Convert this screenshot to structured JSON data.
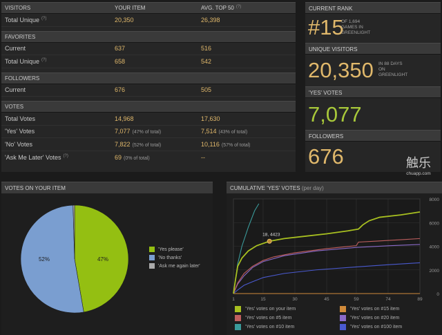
{
  "stats": {
    "visitors": {
      "header": [
        "VISITORS",
        "YOUR ITEM",
        "AVG. TOP 50"
      ],
      "header_sup": "(?)",
      "rows": [
        {
          "label": "Total Unique",
          "sup": "(?)",
          "yours": "20,350",
          "avg": "26,398"
        }
      ]
    },
    "favorites": {
      "header": "FAVORITES",
      "rows": [
        {
          "label": "Current",
          "yours": "637",
          "avg": "516"
        },
        {
          "label": "Total Unique",
          "sup": "(?)",
          "yours": "658",
          "avg": "542"
        }
      ]
    },
    "followers": {
      "header": "FOLLOWERS",
      "rows": [
        {
          "label": "Current",
          "yours": "676",
          "avg": "505"
        }
      ]
    },
    "votes": {
      "header": "VOTES",
      "rows": [
        {
          "label": "Total Votes",
          "yours": "14,968",
          "avg": "17,630"
        },
        {
          "label": "'Yes' Votes",
          "yours": "7,077",
          "yours_pct": "(47% of total)",
          "avg": "7,514",
          "avg_pct": "(43% of total)"
        },
        {
          "label": "'No' Votes",
          "yours": "7,822",
          "yours_pct": "(52% of total)",
          "avg": "10,116",
          "avg_pct": "(57% of total)"
        },
        {
          "label": "'Ask Me Later' Votes",
          "sup": "(?)",
          "yours": "69",
          "yours_pct": "(0% of total)",
          "avg": "--"
        }
      ]
    }
  },
  "rank": {
    "rank_header": "CURRENT RANK",
    "rank_value": "#15",
    "rank_note_1": "OF 1,694",
    "rank_note_2": "GAMES IN",
    "rank_note_3": "GREENLIGHT",
    "visitors_header": "UNIQUE VISITORS",
    "visitors_value": "20,350",
    "visitors_note_1": "IN 88 DAYS",
    "visitors_note_2": "ON",
    "visitors_note_3": "GREENLIGHT",
    "yes_header": "'YES' VOTES",
    "yes_value": "7,077",
    "followers_header": "FOLLOWERS",
    "followers_value": "676"
  },
  "pie": {
    "header": "VOTES ON YOUR ITEM",
    "legend": [
      "'Yes please'",
      "'No thanks'",
      "'Ask me again later'"
    ],
    "label_yes": "47%",
    "label_no": "52%"
  },
  "line": {
    "header": "CUMULATIVE 'YES' VOTES",
    "header_sub": "(per day)",
    "tooltip": "18, 4423",
    "legend": [
      "'Yes' votes on your item",
      "'Yes' votes on #5 item",
      "'Yes' votes on #10 item",
      "'Yes' votes on #15 item",
      "'Yes' votes on #20 item",
      "'Yes' votes on #100 item"
    ]
  },
  "watermark": {
    "logo": "触乐",
    "site": "chuapp.com"
  },
  "chart_data": [
    {
      "type": "pie",
      "title": "VOTES ON YOUR ITEM",
      "categories": [
        "'Yes please'",
        "'No thanks'",
        "'Ask me again later'"
      ],
      "values": [
        7077,
        7822,
        69
      ],
      "colors": [
        "#94bf12",
        "#7a9ed0",
        "#aaaaaa"
      ]
    },
    {
      "type": "line",
      "title": "CUMULATIVE 'YES' VOTES",
      "xticks": [
        1,
        15,
        30,
        45,
        59,
        74,
        89
      ],
      "yticks": [
        0,
        2000,
        4000,
        6000,
        8000
      ],
      "ylim": [
        0,
        8000
      ],
      "xlim": [
        1,
        89
      ],
      "series": [
        {
          "name": "'Yes' votes on your item",
          "color": "#a8c020",
          "x": [
            1,
            2,
            3,
            5,
            8,
            12,
            18,
            25,
            35,
            45,
            55,
            60,
            62,
            65,
            70,
            80,
            89
          ],
          "y": [
            0,
            1200,
            2300,
            3000,
            3600,
            4050,
            4423,
            4650,
            4850,
            5050,
            5300,
            5450,
            5800,
            6150,
            6450,
            6650,
            6900
          ]
        },
        {
          "name": "'Yes' votes on #5 item",
          "color": "#c05f5f",
          "x": [
            1,
            3,
            6,
            10,
            15,
            20,
            30,
            45,
            59,
            60,
            70,
            80,
            89
          ],
          "y": [
            0,
            900,
            1700,
            2300,
            2800,
            3100,
            3450,
            3800,
            4050,
            4350,
            4450,
            4550,
            4650
          ]
        },
        {
          "name": "'Yes' votes on #10 item",
          "color": "#3a9a9a",
          "x": [
            1,
            2,
            3,
            5,
            8,
            11,
            13
          ],
          "y": [
            0,
            1200,
            2500,
            4000,
            5600,
            7000,
            7600
          ]
        },
        {
          "name": "'Yes' votes on #15 item",
          "color": "#d08a3a",
          "x": [
            1,
            89
          ],
          "y": [
            0,
            0
          ]
        },
        {
          "name": "'Yes' votes on #20 item",
          "color": "#8a6ac8",
          "x": [
            1,
            3,
            6,
            10,
            15,
            25,
            40,
            59,
            75,
            89
          ],
          "y": [
            0,
            800,
            1500,
            2200,
            2700,
            3200,
            3600,
            3900,
            4050,
            4150
          ]
        },
        {
          "name": "'Yes' votes on #100 item",
          "color": "#4a5ad0",
          "x": [
            1,
            3,
            6,
            10,
            15,
            25,
            40,
            59,
            75,
            89
          ],
          "y": [
            0,
            300,
            700,
            1000,
            1350,
            1700,
            2000,
            2250,
            2450,
            2600
          ]
        }
      ],
      "tooltip_point": {
        "x": 18,
        "y": 4423
      }
    }
  ]
}
